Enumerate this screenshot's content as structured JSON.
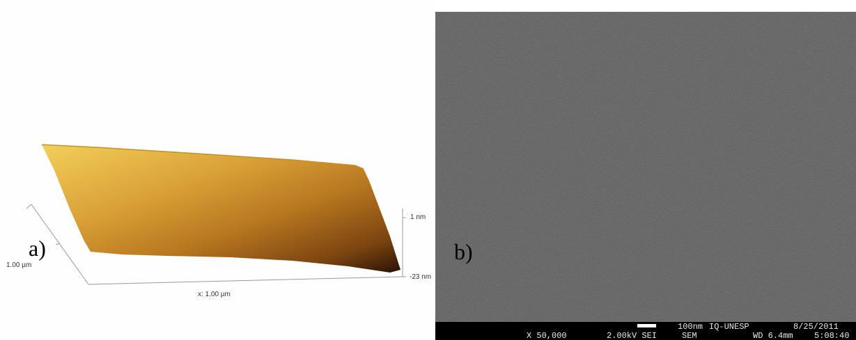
{
  "panel_a": {
    "label": "a)",
    "y_axis_label": "1.00 µm",
    "x_axis_label": "x: 1.00 µm",
    "z_top_label": "1 nm",
    "z_bottom_label": "-23 nm",
    "colormap": [
      "#f3cf5a",
      "#d9a137",
      "#b97820",
      "#7a4410",
      "#2a1204"
    ]
  },
  "panel_b": {
    "label": "b)",
    "info_row1": {
      "scale": "100nm",
      "lab": "IQ-UNESP",
      "date": "8/25/2011"
    },
    "info_row2": {
      "magnification": "X 50,000",
      "voltage": "2.00kV SEI",
      "mode": "SEM",
      "wd": "WD 6.4mm",
      "time": "5:08:40"
    },
    "background_color": "#595959"
  }
}
